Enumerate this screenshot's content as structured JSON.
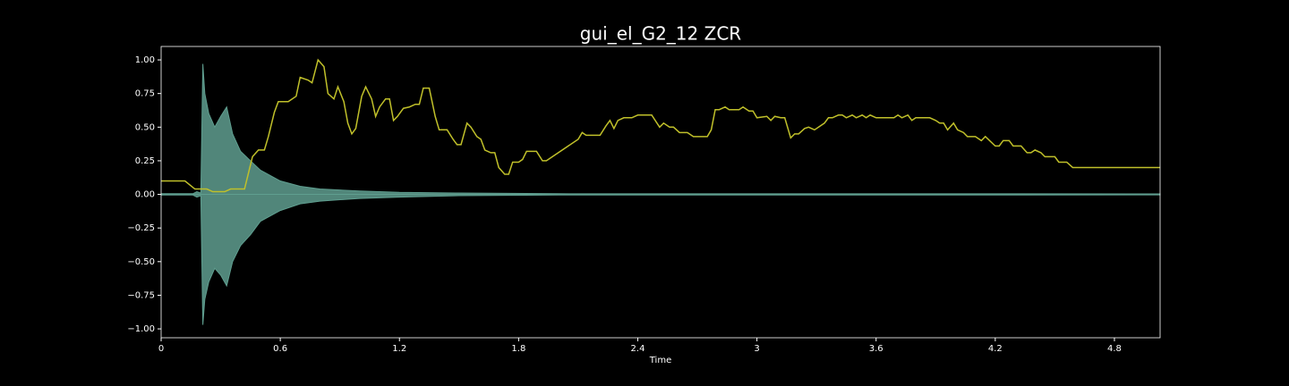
{
  "chart_data": {
    "type": "line",
    "title": "gui_el_G2_12 ZCR",
    "xlabel": "Time",
    "xlim": [
      0,
      5.03
    ],
    "ylim": [
      -1.066,
      1.1
    ],
    "xticks": [
      0,
      0.6,
      1.2,
      1.8,
      2.4,
      3,
      3.6,
      4.2,
      4.8
    ],
    "yticks": [
      {
        "value": -1,
        "label": "−1.00"
      },
      {
        "value": -0.75,
        "label": "−0.75"
      },
      {
        "value": -0.5,
        "label": "−0.50"
      },
      {
        "value": -0.25,
        "label": "−0.25"
      },
      {
        "value": 0,
        "label": "0.00"
      },
      {
        "value": 0.25,
        "label": "0.25"
      },
      {
        "value": 0.5,
        "label": "0.50"
      },
      {
        "value": 0.75,
        "label": "0.75"
      },
      {
        "value": 1,
        "label": "1.00"
      }
    ],
    "series": [
      {
        "color": "#5f9e8f",
        "area": true,
        "x": [
          0,
          0.16,
          0.18,
          0.2,
          0.21,
          0.22,
          0.24,
          0.27,
          0.3,
          0.33,
          0.36,
          0.4,
          0.45,
          0.5,
          0.6,
          0.7,
          0.8,
          1.0,
          1.2,
          1.5,
          2.0,
          5.03
        ],
        "values": [
          0.005,
          0.005,
          0.02,
          0.01,
          0.97,
          0.75,
          0.6,
          0.5,
          0.58,
          0.65,
          0.45,
          0.32,
          0.25,
          0.18,
          0.1,
          0.06,
          0.04,
          0.025,
          0.015,
          0.01,
          0.005,
          0.004
        ]
      },
      {
        "color": "#5f9e8f",
        "area": true,
        "x": [
          0,
          0.16,
          0.18,
          0.2,
          0.21,
          0.22,
          0.24,
          0.27,
          0.3,
          0.33,
          0.36,
          0.4,
          0.45,
          0.5,
          0.6,
          0.7,
          0.8,
          1.0,
          1.2,
          1.5,
          2.0,
          5.03
        ],
        "values": [
          -0.005,
          -0.005,
          -0.02,
          -0.01,
          -0.97,
          -0.78,
          -0.65,
          -0.55,
          -0.6,
          -0.68,
          -0.5,
          -0.38,
          -0.3,
          -0.2,
          -0.12,
          -0.07,
          -0.05,
          -0.03,
          -0.02,
          -0.01,
          -0.005,
          -0.004
        ]
      },
      {
        "color": "#c0c02a",
        "area": false,
        "x": [
          0,
          0.12,
          0.17,
          0.23,
          0.26,
          0.32,
          0.35,
          0.42,
          0.46,
          0.49,
          0.52,
          0.54,
          0.57,
          0.59,
          0.64,
          0.68,
          0.7,
          0.74,
          0.76,
          0.79,
          0.82,
          0.84,
          0.87,
          0.89,
          0.92,
          0.94,
          0.96,
          0.98,
          1.01,
          1.03,
          1.06,
          1.08,
          1.1,
          1.13,
          1.15,
          1.17,
          1.19,
          1.22,
          1.25,
          1.28,
          1.3,
          1.32,
          1.35,
          1.38,
          1.4,
          1.44,
          1.47,
          1.49,
          1.51,
          1.54,
          1.56,
          1.59,
          1.61,
          1.63,
          1.66,
          1.68,
          1.7,
          1.73,
          1.75,
          1.77,
          1.8,
          1.82,
          1.84,
          1.89,
          1.92,
          1.94,
          2.1,
          2.12,
          2.14,
          2.21,
          2.24,
          2.26,
          2.28,
          2.3,
          2.33,
          2.37,
          2.4,
          2.47,
          2.51,
          2.53,
          2.56,
          2.58,
          2.61,
          2.65,
          2.68,
          2.75,
          2.77,
          2.79,
          2.81,
          2.84,
          2.86,
          2.91,
          2.93,
          2.96,
          2.98,
          3.0,
          3.05,
          3.07,
          3.09,
          3.12,
          3.14,
          3.17,
          3.19,
          3.21,
          3.24,
          3.26,
          3.29,
          3.34,
          3.36,
          3.38,
          3.41,
          3.43,
          3.45,
          3.48,
          3.5,
          3.53,
          3.55,
          3.57,
          3.6,
          3.69,
          3.71,
          3.73,
          3.76,
          3.78,
          3.8,
          3.87,
          3.9,
          3.92,
          3.94,
          3.96,
          3.99,
          4.01,
          4.04,
          4.06,
          4.1,
          4.13,
          4.15,
          4.2,
          4.22,
          4.24,
          4.27,
          4.29,
          4.33,
          4.36,
          4.38,
          4.4,
          4.43,
          4.45,
          4.5,
          4.52,
          4.56,
          4.59,
          5.03
        ],
        "values": [
          0.1,
          0.1,
          0.04,
          0.04,
          0.02,
          0.02,
          0.04,
          0.04,
          0.28,
          0.33,
          0.33,
          0.43,
          0.61,
          0.69,
          0.69,
          0.73,
          0.87,
          0.85,
          0.83,
          1.0,
          0.95,
          0.75,
          0.71,
          0.8,
          0.69,
          0.53,
          0.45,
          0.49,
          0.73,
          0.8,
          0.71,
          0.58,
          0.65,
          0.71,
          0.71,
          0.55,
          0.58,
          0.64,
          0.65,
          0.67,
          0.67,
          0.79,
          0.79,
          0.58,
          0.48,
          0.48,
          0.41,
          0.37,
          0.37,
          0.53,
          0.5,
          0.43,
          0.41,
          0.33,
          0.31,
          0.31,
          0.2,
          0.15,
          0.15,
          0.24,
          0.24,
          0.26,
          0.32,
          0.32,
          0.25,
          0.25,
          0.41,
          0.46,
          0.44,
          0.44,
          0.51,
          0.55,
          0.49,
          0.55,
          0.57,
          0.57,
          0.59,
          0.59,
          0.5,
          0.53,
          0.5,
          0.5,
          0.46,
          0.46,
          0.43,
          0.43,
          0.48,
          0.63,
          0.63,
          0.65,
          0.63,
          0.63,
          0.65,
          0.62,
          0.62,
          0.57,
          0.58,
          0.55,
          0.58,
          0.57,
          0.57,
          0.42,
          0.45,
          0.45,
          0.49,
          0.5,
          0.48,
          0.53,
          0.57,
          0.57,
          0.59,
          0.59,
          0.57,
          0.59,
          0.57,
          0.59,
          0.57,
          0.59,
          0.57,
          0.57,
          0.59,
          0.57,
          0.59,
          0.55,
          0.57,
          0.57,
          0.55,
          0.53,
          0.53,
          0.48,
          0.53,
          0.48,
          0.46,
          0.43,
          0.43,
          0.4,
          0.43,
          0.36,
          0.36,
          0.4,
          0.4,
          0.36,
          0.36,
          0.31,
          0.31,
          0.33,
          0.31,
          0.28,
          0.28,
          0.24,
          0.24,
          0.2,
          0.2
        ]
      }
    ]
  }
}
